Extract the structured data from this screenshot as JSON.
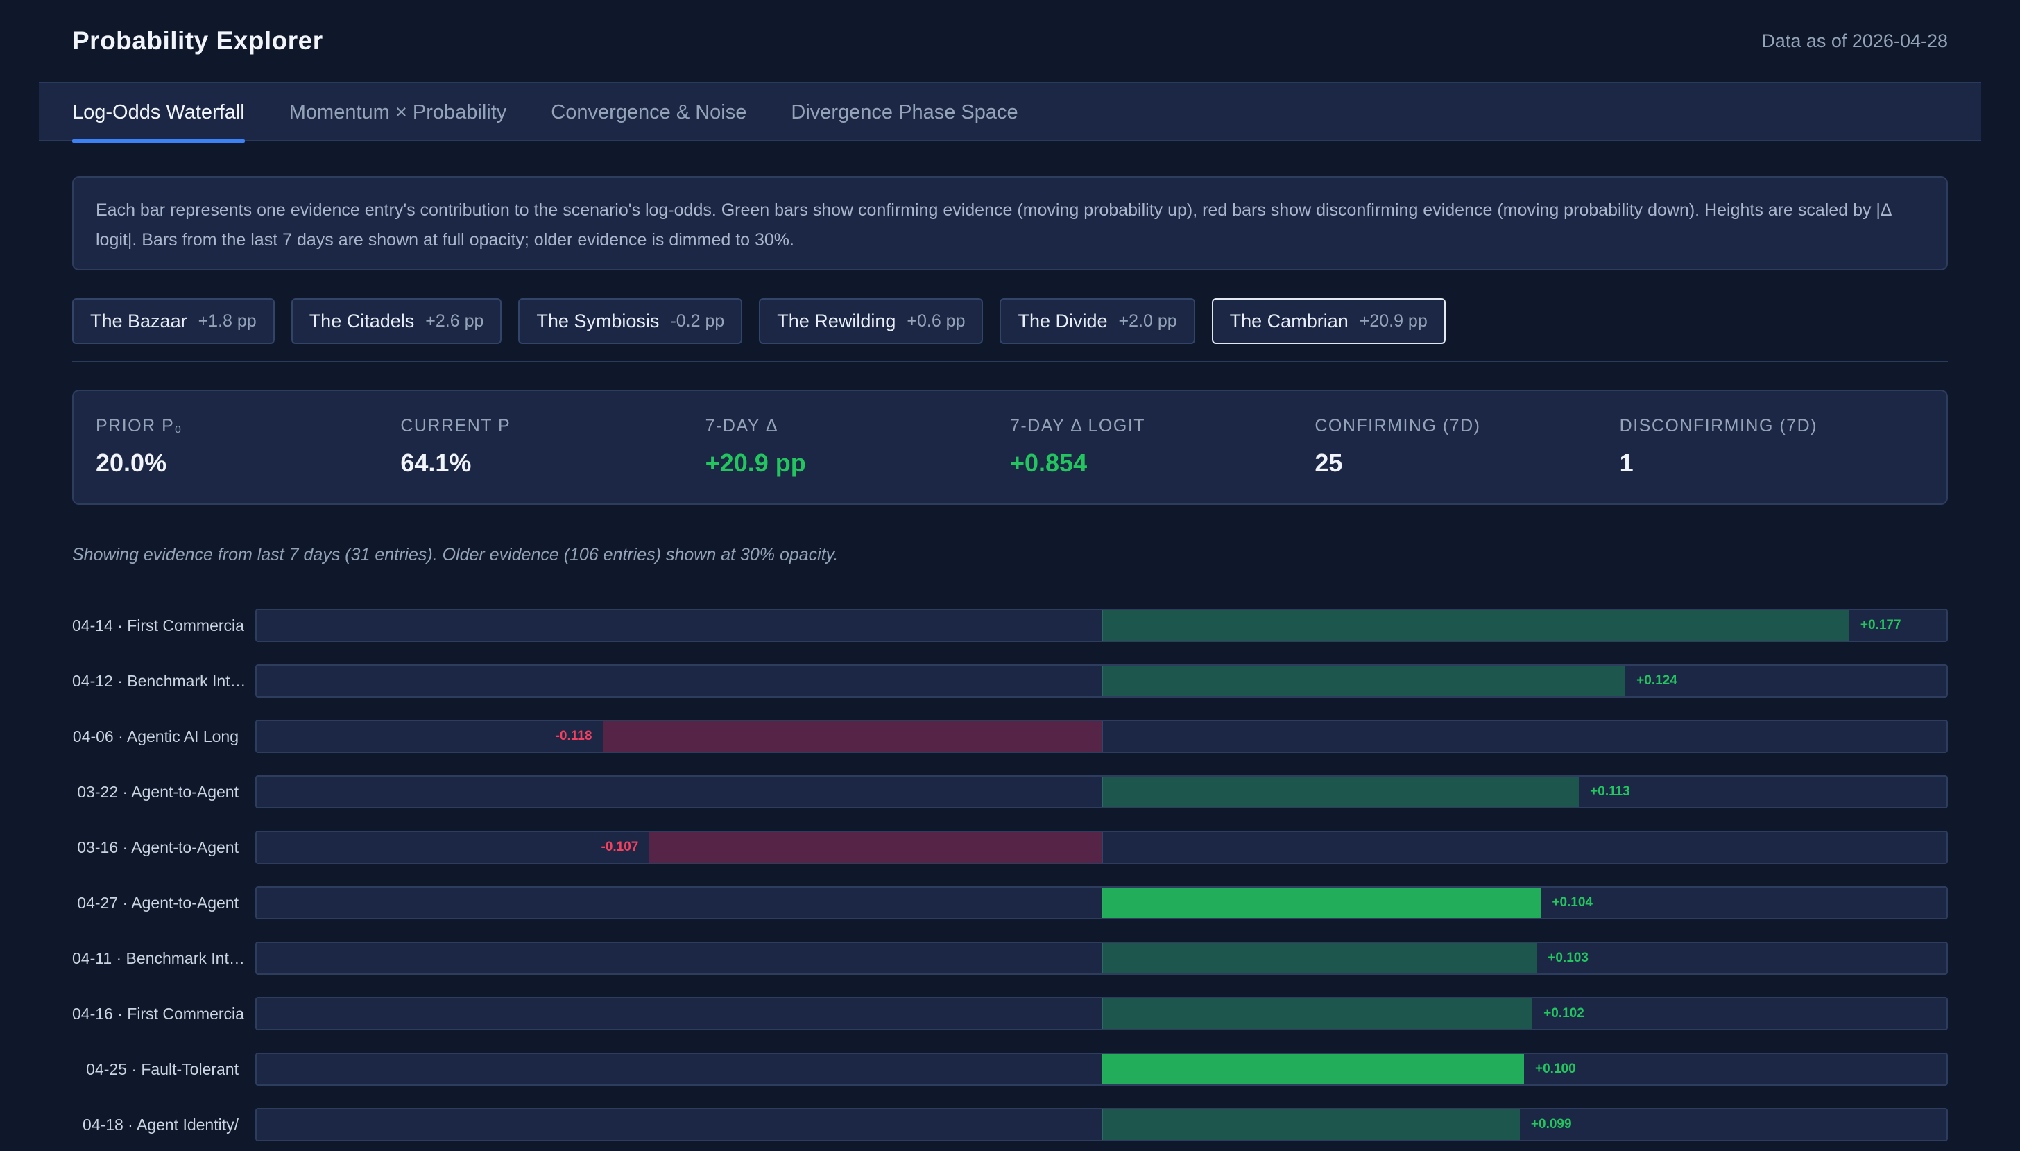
{
  "header": {
    "title": "Probability Explorer",
    "data_asof": "Data as of 2026-04-28"
  },
  "tabs": [
    {
      "label": "Log-Odds Waterfall",
      "active": true
    },
    {
      "label": "Momentum × Probability",
      "active": false
    },
    {
      "label": "Convergence & Noise",
      "active": false
    },
    {
      "label": "Divergence Phase Space",
      "active": false
    }
  ],
  "description": "Each bar represents one evidence entry's contribution to the scenario's log-odds. Green bars show confirming evidence (moving probability up), red bars show disconfirming evidence (moving probability down). Heights are scaled by |Δ logit|. Bars from the last 7 days are shown at full opacity; older evidence is dimmed to 30%.",
  "scenarios": [
    {
      "name": "The Bazaar",
      "delta": "+1.8 pp",
      "active": false
    },
    {
      "name": "The Citadels",
      "delta": "+2.6 pp",
      "active": false
    },
    {
      "name": "The Symbiosis",
      "delta": "-0.2 pp",
      "active": false
    },
    {
      "name": "The Rewilding",
      "delta": "+0.6 pp",
      "active": false
    },
    {
      "name": "The Divide",
      "delta": "+2.0 pp",
      "active": false
    },
    {
      "name": "The Cambrian",
      "delta": "+20.9 pp",
      "active": true
    }
  ],
  "stats": [
    {
      "label": "PRIOR P₀",
      "value": "20.0%",
      "tone": "neutral"
    },
    {
      "label": "CURRENT P",
      "value": "64.1%",
      "tone": "neutral"
    },
    {
      "label": "7-DAY Δ",
      "value": "+20.9 pp",
      "tone": "positive"
    },
    {
      "label": "7-DAY Δ LOGIT",
      "value": "+0.854",
      "tone": "positive"
    },
    {
      "label": "CONFIRMING (7D)",
      "value": "25",
      "tone": "neutral"
    },
    {
      "label": "DISCONFIRMING (7D)",
      "value": "1",
      "tone": "neutral"
    }
  ],
  "note": "Showing evidence from last 7 days (31 entries). Older evidence (106 entries) shown at 30% opacity.",
  "colors": {
    "confirm": "#22c55e",
    "disconfirm": "#e11d48",
    "confirm_text": "#22c55e",
    "disconfirm_text": "#f43f5e"
  },
  "chart_data": {
    "type": "bar",
    "orientation": "horizontal",
    "x_range": [
      -0.2,
      0.2
    ],
    "rows": [
      {
        "label": "04-14 · First Commercia",
        "value": 0.177,
        "value_label": "+0.177",
        "recent": false
      },
      {
        "label": "04-12 · Benchmark Int…",
        "value": 0.124,
        "value_label": "+0.124",
        "recent": false
      },
      {
        "label": "04-06 · Agentic AI Long",
        "value": -0.118,
        "value_label": "-0.118",
        "recent": false
      },
      {
        "label": "03-22 · Agent-to-Agent",
        "value": 0.113,
        "value_label": "+0.113",
        "recent": false
      },
      {
        "label": "03-16 · Agent-to-Agent",
        "value": -0.107,
        "value_label": "-0.107",
        "recent": false
      },
      {
        "label": "04-27 · Agent-to-Agent",
        "value": 0.104,
        "value_label": "+0.104",
        "recent": true
      },
      {
        "label": "04-11 · Benchmark Int…",
        "value": 0.103,
        "value_label": "+0.103",
        "recent": false
      },
      {
        "label": "04-16 · First Commercia",
        "value": 0.102,
        "value_label": "+0.102",
        "recent": false
      },
      {
        "label": "04-25 · Fault-Tolerant",
        "value": 0.1,
        "value_label": "+0.100",
        "recent": true
      },
      {
        "label": "04-18 · Agent Identity/",
        "value": 0.099,
        "value_label": "+0.099",
        "recent": false
      }
    ]
  }
}
